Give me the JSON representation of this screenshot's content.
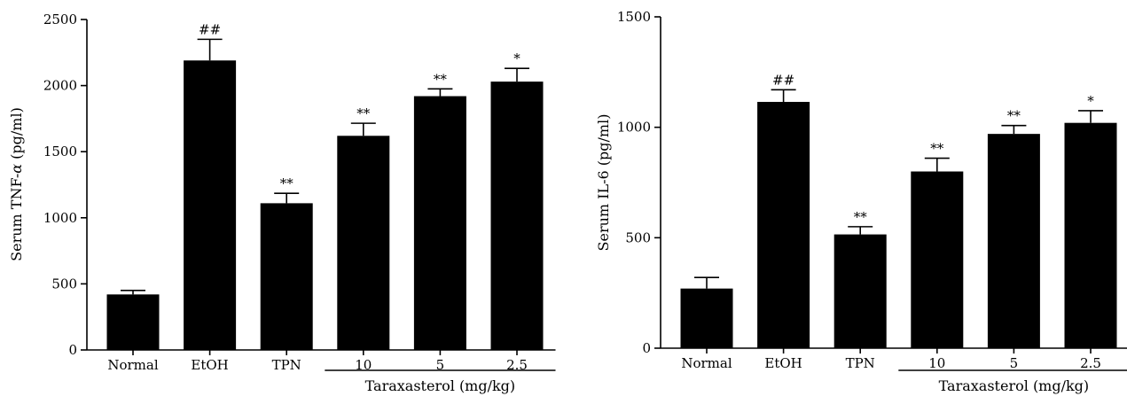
{
  "chart_data": [
    {
      "type": "bar",
      "ylabel": "Serum TNF-α (pg/ml)",
      "ylabel_prefix": "Serum TNF-",
      "ylabel_greek": "α",
      "ylabel_suffix": " (pg/ml)",
      "ylim": [
        0,
        2500
      ],
      "yticks": [
        0,
        500,
        1000,
        1500,
        2000,
        2500
      ],
      "categories": [
        "Normal",
        "EtOH",
        "TPN",
        "10",
        "5",
        "2.5"
      ],
      "values": [
        420,
        2190,
        1110,
        1620,
        1920,
        2030
      ],
      "errors": [
        30,
        160,
        75,
        95,
        55,
        100
      ],
      "annotations": [
        "",
        "##",
        "**",
        "**",
        "**",
        "*"
      ],
      "group_label": "Taraxasterol (mg/kg)",
      "bar_color": "#000000"
    },
    {
      "type": "bar",
      "ylabel": "Serum IL-6 (pg/ml)",
      "ylim": [
        0,
        1500
      ],
      "yticks": [
        0,
        500,
        1000,
        1500
      ],
      "categories": [
        "Normal",
        "EtOH",
        "TPN",
        "10",
        "5",
        "2.5"
      ],
      "values": [
        270,
        1115,
        515,
        800,
        970,
        1020
      ],
      "errors": [
        50,
        55,
        35,
        60,
        38,
        55
      ],
      "annotations": [
        "",
        "##",
        "**",
        "**",
        "**",
        "*"
      ],
      "group_label": "Taraxasterol (mg/kg)",
      "bar_color": "#000000"
    }
  ]
}
